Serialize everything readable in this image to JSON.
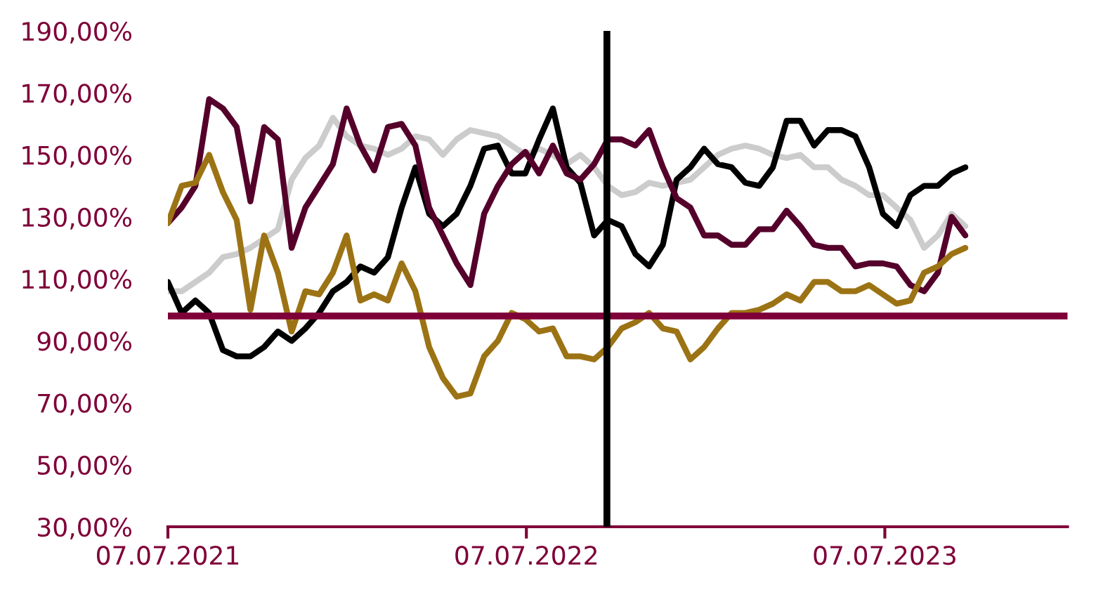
{
  "chart_data": {
    "type": "line",
    "x": [
      "2021-07-07",
      "2021-07-21",
      "2021-08-04",
      "2021-08-18",
      "2021-09-01",
      "2021-09-15",
      "2021-09-29",
      "2021-10-13",
      "2021-10-27",
      "2021-11-10",
      "2021-11-24",
      "2021-12-08",
      "2021-12-22",
      "2022-01-05",
      "2022-01-19",
      "2022-02-02",
      "2022-02-16",
      "2022-03-02",
      "2022-03-16",
      "2022-03-30",
      "2022-04-13",
      "2022-04-27",
      "2022-05-11",
      "2022-05-25",
      "2022-06-08",
      "2022-06-22",
      "2022-07-06",
      "2022-07-20",
      "2022-08-03",
      "2022-08-17",
      "2022-08-31",
      "2022-09-14",
      "2022-09-28",
      "2022-10-12",
      "2022-10-26",
      "2022-11-09",
      "2022-11-23",
      "2022-12-07",
      "2022-12-21",
      "2023-01-04",
      "2023-01-18",
      "2023-02-01",
      "2023-02-15",
      "2023-03-01",
      "2023-03-15",
      "2023-03-29",
      "2023-04-12",
      "2023-04-26",
      "2023-05-10",
      "2023-05-24",
      "2023-06-07",
      "2023-06-21",
      "2023-07-05",
      "2023-07-19",
      "2023-08-02",
      "2023-08-16",
      "2023-08-30",
      "2023-09-13",
      "2023-09-27"
    ],
    "series": [
      {
        "color": "#cccccc",
        "values": [
          106,
          106,
          109,
          112,
          117,
          118,
          120,
          123,
          126,
          142,
          149,
          153,
          162,
          156,
          153,
          152,
          150,
          152,
          156,
          155,
          150,
          155,
          158,
          157,
          156,
          153,
          150,
          152,
          150,
          147,
          150,
          146,
          140,
          137,
          138,
          141,
          140,
          141,
          142,
          146,
          150,
          152,
          153,
          152,
          150,
          149,
          150,
          146,
          146,
          142,
          140,
          137,
          137,
          133,
          129,
          120,
          124,
          131,
          127
        ]
      },
      {
        "color": "#000000",
        "values": [
          109,
          99,
          103,
          99,
          87,
          85,
          85,
          88,
          93,
          90,
          94,
          99,
          106,
          109,
          114,
          112,
          117,
          133,
          146,
          131,
          127,
          131,
          140,
          152,
          153,
          144,
          144,
          155,
          165,
          146,
          141,
          124,
          129,
          127,
          118,
          114,
          121,
          142,
          146,
          152,
          147,
          146,
          141,
          140,
          146,
          161,
          161,
          153,
          158,
          158,
          156,
          146,
          131,
          127,
          137,
          140,
          140,
          144,
          146
        ]
      },
      {
        "color": "#55002a",
        "values": [
          128,
          133,
          140,
          168,
          165,
          159,
          135,
          159,
          155,
          120,
          133,
          140,
          147,
          165,
          153,
          145,
          159,
          160,
          153,
          133,
          124,
          115,
          108,
          131,
          140,
          147,
          151,
          144,
          153,
          144,
          142,
          147,
          155,
          155,
          153,
          158,
          146,
          136,
          133,
          124,
          124,
          121,
          121,
          126,
          126,
          132,
          127,
          121,
          120,
          120,
          114,
          115,
          115,
          114,
          108,
          106,
          112,
          130,
          124
        ]
      },
      {
        "color": "#9c7314",
        "values": [
          128,
          140,
          141,
          150,
          138,
          129,
          100,
          124,
          112,
          93,
          106,
          105,
          112,
          124,
          103,
          105,
          103,
          115,
          106,
          88,
          78,
          72,
          73,
          85,
          90,
          99,
          97,
          93,
          94,
          85,
          85,
          84,
          88,
          94,
          96,
          99,
          94,
          93,
          84,
          88,
          94,
          99,
          99,
          100,
          102,
          105,
          103,
          109,
          109,
          106,
          106,
          108,
          105,
          102,
          103,
          112,
          114,
          118,
          120
        ]
      }
    ],
    "xlim": [
      "2021-07-07",
      "2024-01-09"
    ],
    "xticks": [
      {
        "value": "2021-07-07",
        "label": "07.07.2021"
      },
      {
        "value": "2022-07-07",
        "label": "07.07.2022"
      },
      {
        "value": "2023-07-07",
        "label": "07.07.2023"
      }
    ],
    "ylim": [
      30,
      190
    ],
    "yticks": [
      {
        "value": 30,
        "label": "30,00%"
      },
      {
        "value": 50,
        "label": "50,00%"
      },
      {
        "value": 70,
        "label": "70,00%"
      },
      {
        "value": 90,
        "label": "90,00%"
      },
      {
        "value": 110,
        "label": "110,00%"
      },
      {
        "value": 130,
        "label": "130,00%"
      },
      {
        "value": 150,
        "label": "150,00%"
      },
      {
        "value": 170,
        "label": "170,00%"
      },
      {
        "value": 190,
        "label": "190,00%"
      }
    ],
    "ref_lines": [
      {
        "axis": "y",
        "value": 98,
        "color": "#7f0038"
      },
      {
        "axis": "x",
        "value": "2022-09-27",
        "color": "#000000"
      }
    ],
    "marker": "none",
    "line_style": "solid"
  }
}
